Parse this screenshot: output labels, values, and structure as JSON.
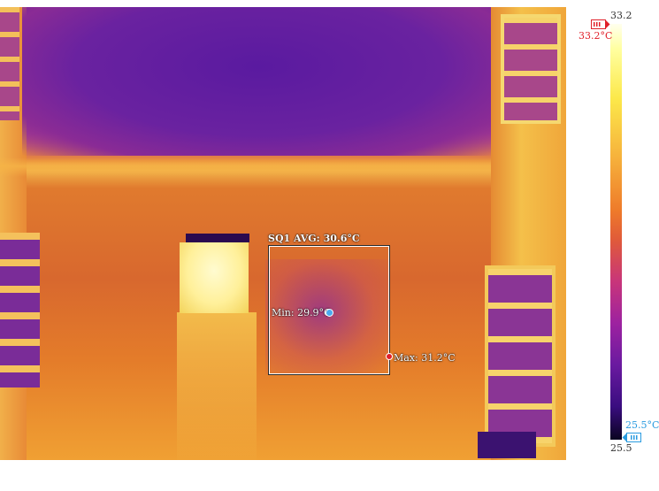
{
  "overlay": {
    "sq1_label": "SQ1 AVG: 30.6°C",
    "min_label": "Min: 29.9°C",
    "max_label": "Max: 31.2°C"
  },
  "scale": {
    "max_value": "33.2",
    "min_value": "25.5",
    "max_marker_text": "33.2°C",
    "min_marker_text": "25.5°C",
    "palette": "iron",
    "max_marker_color": "#e0202a",
    "min_marker_color": "#2a9be0"
  },
  "icons": {
    "max_marker": "thermometer-high-icon",
    "min_marker": "thermometer-low-icon"
  }
}
